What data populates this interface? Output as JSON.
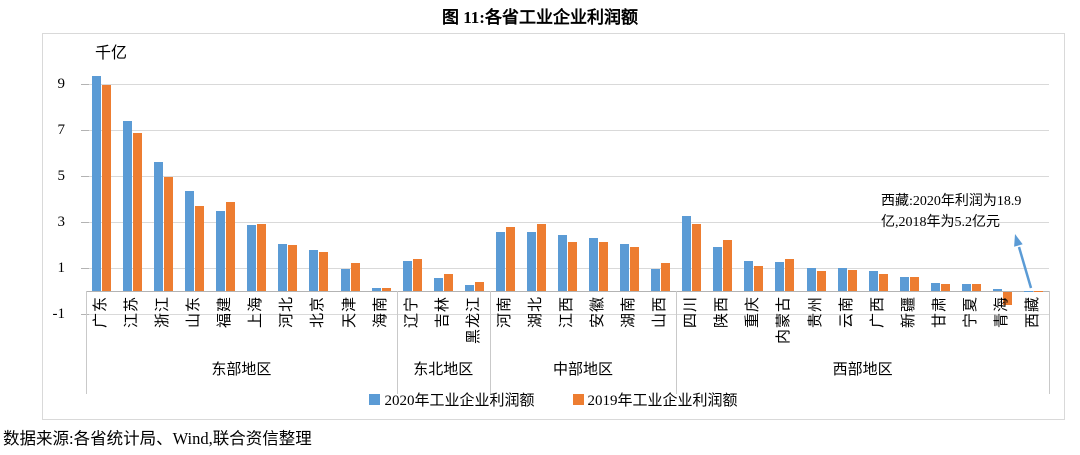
{
  "title": "图 11:各省工业企业利润额",
  "source_note": "数据来源:各省统计局、Wind,联合资信整理",
  "chart_data": {
    "type": "bar",
    "unit_label": "千亿",
    "ylim": [
      -1,
      10
    ],
    "y_ticks": [
      9,
      7,
      5,
      3,
      1,
      -1
    ],
    "grid": true,
    "legend_position": "bottom",
    "colors": {
      "series_2020": "#5B9BD5",
      "series_2019": "#ED7D31",
      "gridline": "#d9d9d9",
      "axis": "#b3b3b3"
    },
    "groups": [
      {
        "label": "东部地区",
        "provinces": [
          "广东",
          "江苏",
          "浙江",
          "山东",
          "福建",
          "上海",
          "河北",
          "北京",
          "天津",
          "海南"
        ]
      },
      {
        "label": "东北地区",
        "provinces": [
          "辽宁",
          "吉林",
          "黑龙江"
        ]
      },
      {
        "label": "中部地区",
        "provinces": [
          "河南",
          "湖北",
          "江西",
          "安徽",
          "湖南",
          "山西"
        ]
      },
      {
        "label": "西部地区",
        "provinces": [
          "四川",
          "陕西",
          "重庆",
          "内蒙古",
          "贵州",
          "云南",
          "广西",
          "新疆",
          "甘肃",
          "宁夏",
          "青海",
          "西藏"
        ]
      }
    ],
    "series": [
      {
        "name": "2020年工业企业利润额",
        "color": "#5B9BD5",
        "values": [
          9.35,
          7.4,
          5.6,
          4.35,
          3.5,
          2.85,
          2.05,
          1.8,
          0.95,
          0.12,
          1.3,
          0.55,
          0.25,
          2.55,
          2.55,
          2.45,
          2.3,
          2.05,
          0.95,
          3.25,
          1.9,
          1.3,
          1.25,
          1.0,
          1.0,
          0.85,
          0.6,
          0.35,
          0.3,
          0.1,
          0.02
        ]
      },
      {
        "name": "2019年工业企业利润额",
        "color": "#ED7D31",
        "values": [
          8.95,
          6.85,
          4.95,
          3.7,
          3.85,
          2.9,
          2.0,
          1.7,
          1.2,
          0.15,
          1.4,
          0.75,
          0.4,
          2.8,
          2.9,
          2.15,
          2.15,
          1.9,
          1.2,
          2.9,
          2.2,
          1.1,
          1.4,
          0.85,
          0.9,
          0.75,
          0.6,
          0.3,
          0.3,
          -0.55,
          0.005
        ]
      }
    ],
    "annotation": {
      "line1": "西藏:2020年利润为18.9",
      "line2": "亿,2018年为5.2亿元"
    }
  }
}
